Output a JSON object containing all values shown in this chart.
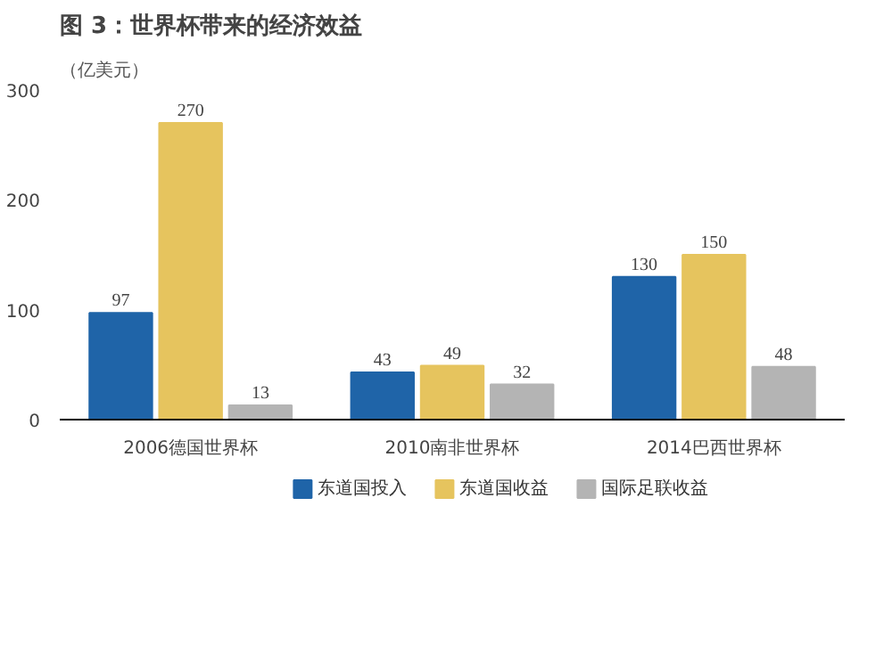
{
  "chart_data": {
    "type": "bar",
    "title": "图 3：世界杯带来的经济效益",
    "ylabel": "（亿美元）",
    "categories": [
      "2006德国世界杯",
      "2010南非世界杯",
      "2014巴西世界杯"
    ],
    "series": [
      {
        "name": "东道国投入",
        "color": "#1f64a8",
        "values": [
          97,
          43,
          130
        ]
      },
      {
        "name": "东道国收益",
        "color": "#e6c45e",
        "values": [
          270,
          49,
          150
        ]
      },
      {
        "name": "国际足联收益",
        "color": "#b4b4b4",
        "values": [
          13,
          32,
          48
        ]
      }
    ],
    "ylim": [
      0,
      300
    ],
    "yticks": [
      0,
      100,
      200,
      300
    ],
    "data_labels": true,
    "legend": "bottom"
  }
}
